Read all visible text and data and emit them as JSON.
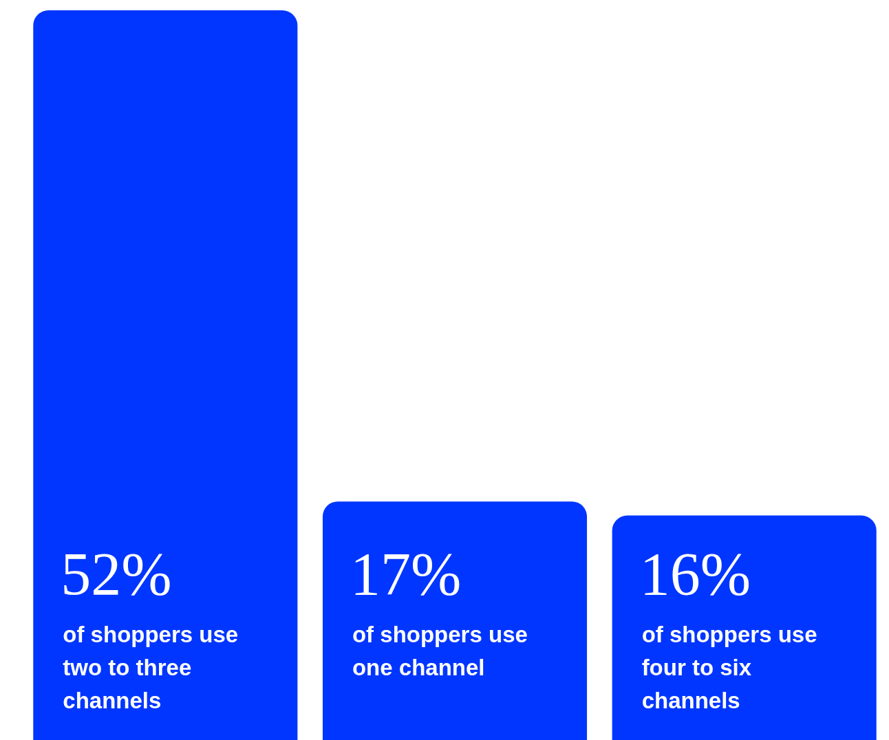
{
  "chart_data": {
    "type": "bar",
    "categories": [
      "of shoppers use two to three channels",
      "of shoppers use one channel",
      "of shoppers use four to six channels"
    ],
    "values": [
      52,
      17,
      16
    ],
    "color": "#0036ff",
    "value_labels": [
      "52%",
      "17%",
      "16%"
    ],
    "legend": false,
    "tick_labels": false
  }
}
